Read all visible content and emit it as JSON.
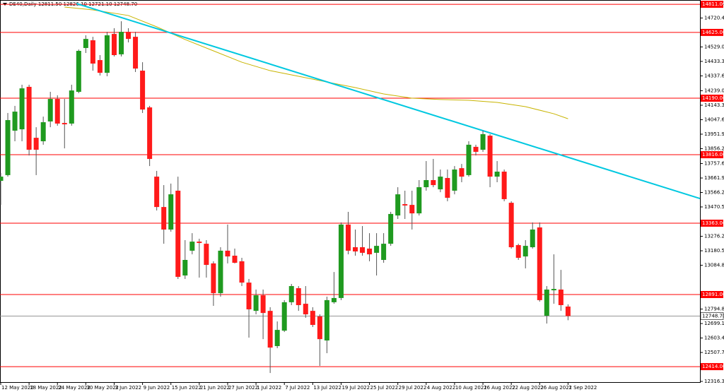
{
  "chart_data": {
    "type": "candlestick",
    "header": "DE40,Daily  12811.50 12826.10 12721.10 12748.70",
    "categories": [
      "12 May 2022",
      null,
      null,
      null,
      "18 May 2022",
      null,
      null,
      null,
      "24 May 2022",
      null,
      null,
      null,
      "30 May 2022",
      null,
      null,
      null,
      "3 Jun 2022",
      null,
      null,
      null,
      "9 Jun 2022",
      null,
      null,
      null,
      "15 Jun 2022",
      null,
      null,
      null,
      "21 Jun 2022",
      null,
      null,
      null,
      "27 Jun 2022",
      null,
      null,
      null,
      "1 Jul 2022",
      null,
      null,
      null,
      "7 Jul 2022",
      null,
      null,
      null,
      "13 Jul 2022",
      null,
      null,
      null,
      "19 Jul 2022",
      null,
      null,
      null,
      "25 Jul 2022",
      null,
      null,
      null,
      "29 Jul 2022",
      null,
      null,
      null,
      "4 Aug 2022",
      null,
      null,
      null,
      "10 Aug 2022",
      null,
      null,
      null,
      "16 Aug 2022",
      null,
      null,
      null,
      "22 Aug 2022",
      null,
      null,
      null,
      "26 Aug 2022",
      null,
      null,
      null,
      "1 Sep 2022"
    ],
    "open": [
      13643,
      13681,
      13975,
      13984,
      14265,
      13928,
      13905,
      14036,
      14185,
      14026,
      14022,
      14232,
      14522,
      14573,
      14442,
      14358,
      14615,
      14480,
      14629,
      14596,
      14372,
      14129,
      13671,
      13470,
      13321,
      13578,
      13017,
      13181,
      13241,
      13227,
      13097,
      12900,
      13181,
      13148,
      13111,
      12970,
      12783,
      12886,
      12783,
      12550,
      12652,
      12840,
      12933,
      12830,
      12783,
      12746,
      12587,
      12840,
      12868,
      13354,
      13204,
      13204,
      13195,
      13167,
      13120,
      13227,
      13414,
      13489,
      13484,
      13428,
      13601,
      13648,
      13587,
      13662,
      13578,
      13727,
      13681,
      13868,
      13849,
      13942,
      13671,
      13704,
      13498,
      13218,
      13143,
      13204,
      13335,
      12751,
      12919,
      12924,
      12811.5
    ],
    "high": [
      13695,
      14092,
      14139,
      14279,
      14279,
      13998,
      14068,
      14232,
      14209,
      14185,
      14279,
      14512,
      14606,
      14596,
      14475,
      14629,
      14653,
      14699,
      14653,
      14629,
      14428,
      14139,
      13709,
      13615,
      13625,
      13671,
      13251,
      13297,
      13260,
      13251,
      13111,
      13204,
      13354,
      13195,
      13134,
      12994,
      12924,
      12924,
      12807,
      12713,
      12854,
      12961,
      12947,
      12947,
      12807,
      12760,
      12877,
      13040,
      13368,
      13438,
      13321,
      13344,
      13297,
      13297,
      13297,
      13438,
      13601,
      13578,
      13578,
      13648,
      13774,
      13788,
      13718,
      13718,
      13741,
      13755,
      13905,
      13882,
      13975,
      13952,
      13774,
      13718,
      13508,
      13227,
      13251,
      13368,
      13368,
      12947,
      13157,
      13054,
      12826.1
    ],
    "low": [
      13484,
      13671,
      13905,
      13905,
      13811,
      13681,
      13882,
      13998,
      14008,
      13858,
      14008,
      14223,
      14489,
      14372,
      14340,
      14335,
      14466,
      14466,
      14559,
      14363,
      14092,
      13741,
      13447,
      13227,
      13307,
      12994,
      12994,
      13157,
      13003,
      13003,
      12816,
      12877,
      13097,
      13097,
      12947,
      12606,
      12760,
      12596,
      12372,
      12536,
      12643,
      12821,
      12783,
      12737,
      12676,
      12419,
      12503,
      12830,
      12854,
      13157,
      13148,
      13148,
      13111,
      13017,
      13101,
      13213,
      13391,
      13391,
      13321,
      13414,
      13578,
      13601,
      13568,
      13508,
      13554,
      13634,
      13671,
      13811,
      13835,
      13601,
      13634,
      13508,
      13195,
      13120,
      13064,
      13195,
      12844,
      12699,
      12830,
      12783,
      12721.1
    ],
    "close": [
      13671,
      14045,
      14101,
      14255,
      13849,
      13849,
      14031,
      14185,
      14022,
      14017,
      14241,
      14503,
      14582,
      14419,
      14358,
      14606,
      14475,
      14629,
      14582,
      14386,
      14115,
      13788,
      13470,
      13321,
      13554,
      13008,
      13120,
      13241,
      13232,
      13087,
      12900,
      13181,
      13143,
      13101,
      12970,
      12793,
      12886,
      12769,
      12540,
      12657,
      12840,
      12947,
      12821,
      12760,
      12690,
      12596,
      12854,
      12868,
      13354,
      13181,
      13176,
      13167,
      13157,
      13213,
      13227,
      13424,
      13554,
      13480,
      13428,
      13601,
      13648,
      13615,
      13671,
      13531,
      13718,
      13671,
      13882,
      13835,
      13952,
      13671,
      13704,
      13522,
      13204,
      13134,
      13213,
      13321,
      12854,
      12924,
      12928,
      12821,
      12748.7
    ],
    "up_color": "#1f9a1f",
    "down_color": "#ff1a1a",
    "ylim": [
      12311.6,
      14839.5
    ],
    "yticks": [
      {
        "value": 14816.1,
        "label": "14816.10"
      },
      {
        "value": 14720.4,
        "label": "14720.40"
      },
      {
        "value": 14529,
        "label": "14529.00"
      },
      {
        "value": 14433.3,
        "label": "14433.30"
      },
      {
        "value": 14337.6,
        "label": "14337.60"
      },
      {
        "value": 14239,
        "label": "14239.00"
      },
      {
        "value": 14143.3,
        "label": "14143.30"
      },
      {
        "value": 14047.6,
        "label": "14047.60"
      },
      {
        "value": 13951.9,
        "label": "13951.90"
      },
      {
        "value": 13856.2,
        "label": "13856.20"
      },
      {
        "value": 13757.6,
        "label": "13757.60"
      },
      {
        "value": 13661.9,
        "label": "13661.90"
      },
      {
        "value": 13566.2,
        "label": "13566.20"
      },
      {
        "value": 13470.5,
        "label": "13470.50"
      },
      {
        "value": 13276.2,
        "label": "13276.20"
      },
      {
        "value": 13180.5,
        "label": "13180.50"
      },
      {
        "value": 13084.8,
        "label": "13084.80"
      },
      {
        "value": 12794.8,
        "label": "12794.80"
      },
      {
        "value": 12699.1,
        "label": "12699.10"
      },
      {
        "value": 12603.4,
        "label": "12603.40"
      },
      {
        "value": 12507.7,
        "label": "12507.70"
      },
      {
        "value": 12316.3,
        "label": "12316.30"
      }
    ],
    "levels": [
      {
        "value": 14811,
        "label": "14811.00"
      },
      {
        "value": 14625,
        "label": "14625.00"
      },
      {
        "value": 14190,
        "label": "14190.00"
      },
      {
        "value": 13816,
        "label": "13816.00"
      },
      {
        "value": 13363,
        "label": "13363.00"
      },
      {
        "value": 12891,
        "label": "12891.00"
      },
      {
        "value": 12414,
        "label": "12414.00"
      }
    ],
    "level_color": "#ff0000",
    "current_price": {
      "value": 12748.7,
      "label": "12748.70"
    },
    "trendline": {
      "x": [
        10.7,
        98.6
      ],
      "values": [
        14816,
        13526
      ],
      "color": "#00c8e0"
    },
    "moving_average": {
      "x": [
        9,
        13,
        18,
        22,
        26,
        30,
        34,
        38,
        42,
        46,
        50,
        54,
        58,
        62,
        66,
        70,
        74,
        78,
        80
      ],
      "values": [
        14793,
        14774,
        14737,
        14662,
        14578,
        14503,
        14428,
        14372,
        14335,
        14297,
        14260,
        14218,
        14190,
        14181,
        14176,
        14162,
        14134,
        14087,
        14054
      ],
      "color": "#c8b400"
    }
  }
}
